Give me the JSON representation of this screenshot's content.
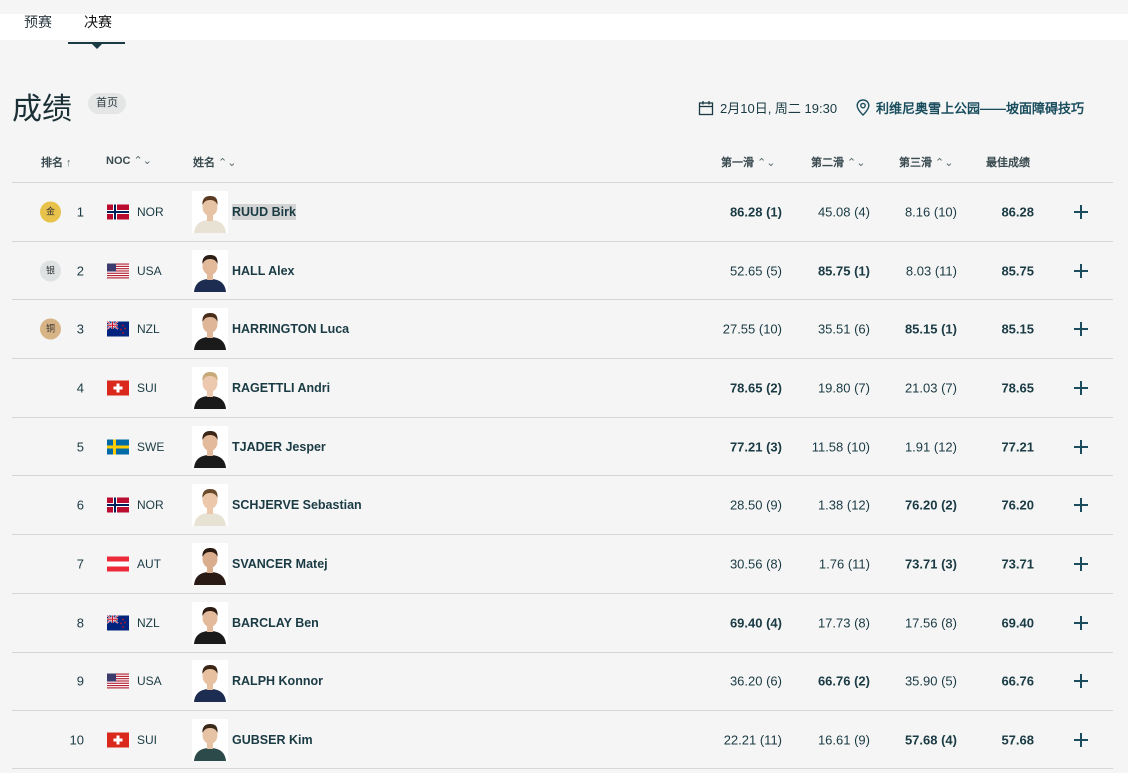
{
  "tabs": [
    {
      "label": "预赛"
    },
    {
      "label": "决赛"
    }
  ],
  "page": {
    "title": "成绩",
    "badge": "首页"
  },
  "meta": {
    "date": "2月10日, 周二 19:30",
    "venue": "利维尼奥雪上公园——坡面障碍技巧"
  },
  "columns": {
    "rank": "排名",
    "noc": "NOC",
    "name": "姓名",
    "run1": "第一滑",
    "run2": "第二滑",
    "run3": "第三滑",
    "best": "最佳成绩"
  },
  "medals": {
    "gold": "金",
    "silver": "银",
    "bronze": "铜"
  },
  "rows": [
    {
      "rank": "1",
      "medal": "gold",
      "noc": "NOR",
      "name": "RUUD Birk",
      "run1": "86.28 (1)",
      "run2": "45.08 (4)",
      "run3": "8.16 (10)",
      "best": "86.28",
      "bold": 1,
      "shirt": "#e8e2d4",
      "skin": "#e7c3a6",
      "hair": "#5a3a22"
    },
    {
      "rank": "2",
      "medal": "silver",
      "noc": "USA",
      "name": "HALL Alex",
      "run1": "52.65 (5)",
      "run2": "85.75 (1)",
      "run3": "8.03 (11)",
      "best": "85.75",
      "bold": 2,
      "shirt": "#1d2d52",
      "skin": "#e2b999",
      "hair": "#2a1e16"
    },
    {
      "rank": "3",
      "medal": "bronze",
      "noc": "NZL",
      "name": "HARRINGTON Luca",
      "run1": "27.55 (10)",
      "run2": "35.51 (6)",
      "run3": "85.15 (1)",
      "best": "85.15",
      "bold": 3,
      "shirt": "#1a1a1a",
      "skin": "#e0b698",
      "hair": "#4a2e1c"
    },
    {
      "rank": "4",
      "medal": "",
      "noc": "SUI",
      "name": "RAGETTLI Andri",
      "run1": "78.65 (2)",
      "run2": "19.80 (7)",
      "run3": "21.03 (7)",
      "best": "78.65",
      "bold": 1,
      "shirt": "#1a1a1a",
      "skin": "#ecc9ae",
      "hair": "#c8a97a"
    },
    {
      "rank": "5",
      "medal": "",
      "noc": "SWE",
      "name": "TJADER Jesper",
      "run1": "77.21 (3)",
      "run2": "11.58 (10)",
      "run3": "1.91 (12)",
      "best": "77.21",
      "bold": 1,
      "shirt": "#1a1a1a",
      "skin": "#e3bb9c",
      "hair": "#3a2516"
    },
    {
      "rank": "6",
      "medal": "",
      "noc": "NOR",
      "name": "SCHJERVE Sebastian",
      "run1": "28.50 (9)",
      "run2": "1.38 (12)",
      "run3": "76.20 (2)",
      "best": "76.20",
      "bold": 3,
      "shirt": "#e8e2d4",
      "skin": "#ecc7aa",
      "hair": "#6a4a2c"
    },
    {
      "rank": "7",
      "medal": "",
      "noc": "AUT",
      "name": "SVANCER Matej",
      "run1": "30.56 (8)",
      "run2": "1.76 (11)",
      "run3": "73.71 (3)",
      "best": "73.71",
      "bold": 3,
      "shirt": "#2a1a16",
      "skin": "#d9ad8e",
      "hair": "#2a1a12"
    },
    {
      "rank": "8",
      "medal": "",
      "noc": "NZL",
      "name": "BARCLAY Ben",
      "run1": "69.40 (4)",
      "run2": "17.73 (8)",
      "run3": "17.56 (8)",
      "best": "69.40",
      "bold": 1,
      "shirt": "#1a1a1a",
      "skin": "#e3bb9c",
      "hair": "#2a1a12"
    },
    {
      "rank": "9",
      "medal": "",
      "noc": "USA",
      "name": "RALPH Konnor",
      "run1": "36.20 (6)",
      "run2": "66.76 (2)",
      "run3": "35.90 (5)",
      "best": "66.76",
      "bold": 2,
      "shirt": "#1d2d52",
      "skin": "#e7c0a0",
      "hair": "#3a2516"
    },
    {
      "rank": "10",
      "medal": "",
      "noc": "SUI",
      "name": "GUBSER Kim",
      "run1": "22.21 (11)",
      "run2": "16.61 (9)",
      "run3": "57.68 (4)",
      "best": "57.68",
      "bold": 3,
      "shirt": "#2d4a4a",
      "skin": "#e7c3a6",
      "hair": "#3a2a1a"
    }
  ],
  "colors": {
    "accent": "#1a4e5e",
    "gold": "#e8c24a",
    "silver": "#dfe2e2",
    "bronze": "#d6b486"
  }
}
